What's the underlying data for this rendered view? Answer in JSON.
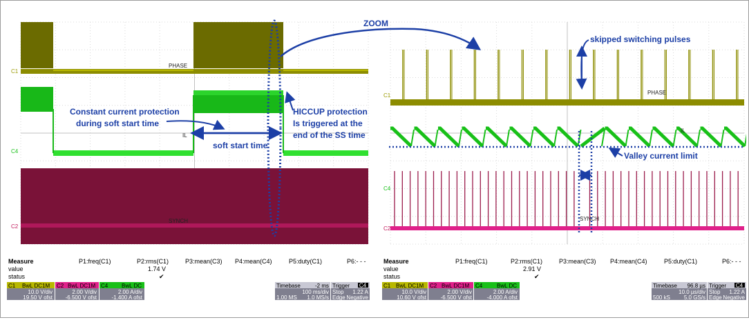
{
  "annotations": {
    "zoom": "ZOOM",
    "constant_current_l1": "Constant current protection",
    "constant_current_l2": "during soft start time",
    "soft_start": "soft start time",
    "hiccup_l1": "HICCUP protection",
    "hiccup_l2": "Is triggered at the",
    "hiccup_l3": "end of the SS time",
    "skipped": "skipped switching pulses",
    "valley": "Valley current limit"
  },
  "colors": {
    "ch1": "#6b6b00",
    "ch2": "#7a1238",
    "ch4": "#18c018",
    "annotation": "#1c3fa6",
    "ch2_bright": "#e0208a"
  },
  "left_scope": {
    "trace_labels": {
      "phase": "PHASE",
      "il": "IL",
      "synch": "SYNCH"
    },
    "channel_tags": {
      "c1": "C1",
      "c4": "C4",
      "c2": "C2"
    },
    "measure": {
      "title": "Measure",
      "value_label": "value",
      "status_label": "status",
      "params": [
        "P1:freq(C1)",
        "P2:rms(C1)",
        "P3:mean(C3)",
        "P4:mean(C4)",
        "P5:duty(C1)",
        "P6:- - -"
      ],
      "p2_value": "1.74 V",
      "check": "✔"
    },
    "channels": [
      {
        "tag": "C1",
        "mode": "BwL DC1M",
        "vdiv": "10.0 V/div",
        "ofst": "19.50 V ofst"
      },
      {
        "tag": "C2",
        "mode": "BwL DC1M",
        "vdiv": "2.00 V/div",
        "ofst": "-6.500 V ofst"
      },
      {
        "tag": "C4",
        "mode": "BwL DC",
        "vdiv": "2.00 A/div",
        "ofst": "-1.400 A ofst"
      }
    ],
    "timebase": {
      "label": "Timebase",
      "value": "-2 ms",
      "div": "100 ms/div",
      "rate_l": "1.00 MS",
      "rate_r": "1.0 MS/s"
    },
    "trigger": {
      "label": "Trigger",
      "tag": "C4",
      "mode": "Stop",
      "level": "1.22 A",
      "type": "Edge",
      "slope": "Negative"
    }
  },
  "right_scope": {
    "trace_labels": {
      "phase": "PHASE",
      "il": "IL",
      "synch": "SYNCH"
    },
    "channel_tags": {
      "c1": "C1",
      "c4": "C4",
      "c2": "C2"
    },
    "measure": {
      "title": "Measure",
      "value_label": "value",
      "status_label": "status",
      "params": [
        "P1:freq(C1)",
        "P2:rms(C1)",
        "P3:mean(C3)",
        "P4:mean(C4)",
        "P5:duty(C1)",
        "P6:- - -"
      ],
      "p2_value": "2.91 V",
      "check": "✔"
    },
    "channels": [
      {
        "tag": "C1",
        "mode": "BwL DC1M",
        "vdiv": "10.0 V/div",
        "ofst": "10.60 V ofst"
      },
      {
        "tag": "C2",
        "mode": "BwL DC1M",
        "vdiv": "2.00 V/div",
        "ofst": "-6.500 V ofst"
      },
      {
        "tag": "C4",
        "mode": "BwL DC",
        "vdiv": "2.00 A/div",
        "ofst": "-4.000 A ofst"
      }
    ],
    "timebase": {
      "label": "Timebase",
      "value": "96.8 µs",
      "div": "10.0 µs/div",
      "rate_l": "500 kS",
      "rate_r": "5.0 GS/s"
    },
    "trigger": {
      "label": "Trigger",
      "tag": "C4",
      "mode": "Stop",
      "level": "1.22 A",
      "type": "Edge",
      "slope": "Negative"
    }
  }
}
